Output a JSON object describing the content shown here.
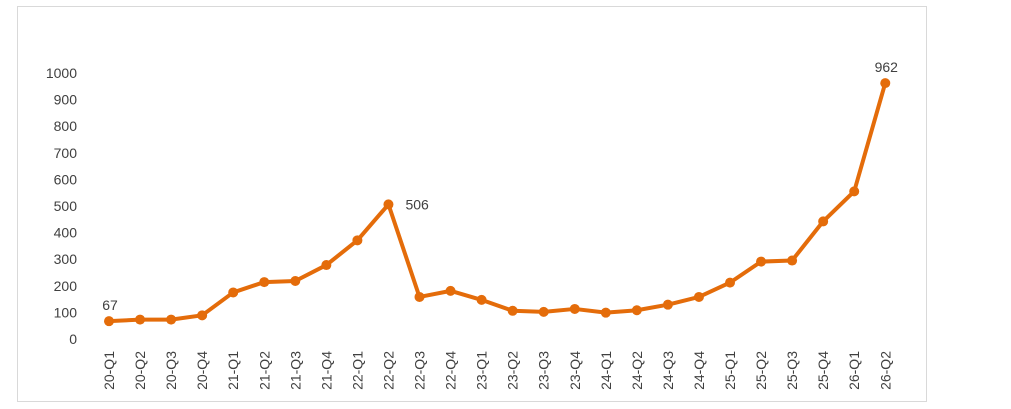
{
  "chart_data": {
    "type": "line",
    "title": "",
    "xlabel": "",
    "ylabel": "",
    "ylim": [
      0,
      1000
    ],
    "y_ticks": [
      0,
      100,
      200,
      300,
      400,
      500,
      600,
      700,
      800,
      900,
      1000
    ],
    "grid": false,
    "legend": "none",
    "categories": [
      "20-Q1",
      "20-Q2",
      "20-Q3",
      "20-Q4",
      "21-Q1",
      "21-Q2",
      "21-Q3",
      "21-Q4",
      "22-Q1",
      "22-Q2",
      "22-Q3",
      "22-Q4",
      "23-Q1",
      "23-Q2",
      "23-Q3",
      "23-Q4",
      "24-Q1",
      "24-Q2",
      "24-Q3",
      "24-Q4",
      "25-Q1",
      "25-Q2",
      "25-Q3",
      "25-Q4",
      "26-Q1",
      "26-Q2"
    ],
    "series": [
      {
        "color": "#E46C0A",
        "values": [
          67,
          73,
          73,
          89,
          175,
          214,
          218,
          278,
          371,
          506,
          158,
          181,
          147,
          106,
          102,
          113,
          99,
          108,
          129,
          158,
          212,
          291,
          295,
          442,
          555,
          962
        ]
      }
    ],
    "data_labels": [
      {
        "index": 0,
        "text": "67",
        "placement": "above"
      },
      {
        "index": 9,
        "text": "506",
        "placement": "right"
      },
      {
        "index": 25,
        "text": "962",
        "placement": "above"
      }
    ],
    "colors": {
      "line": "#E46C0A",
      "axis_text": "#404040",
      "frame_border": "#D9D9D9"
    }
  }
}
